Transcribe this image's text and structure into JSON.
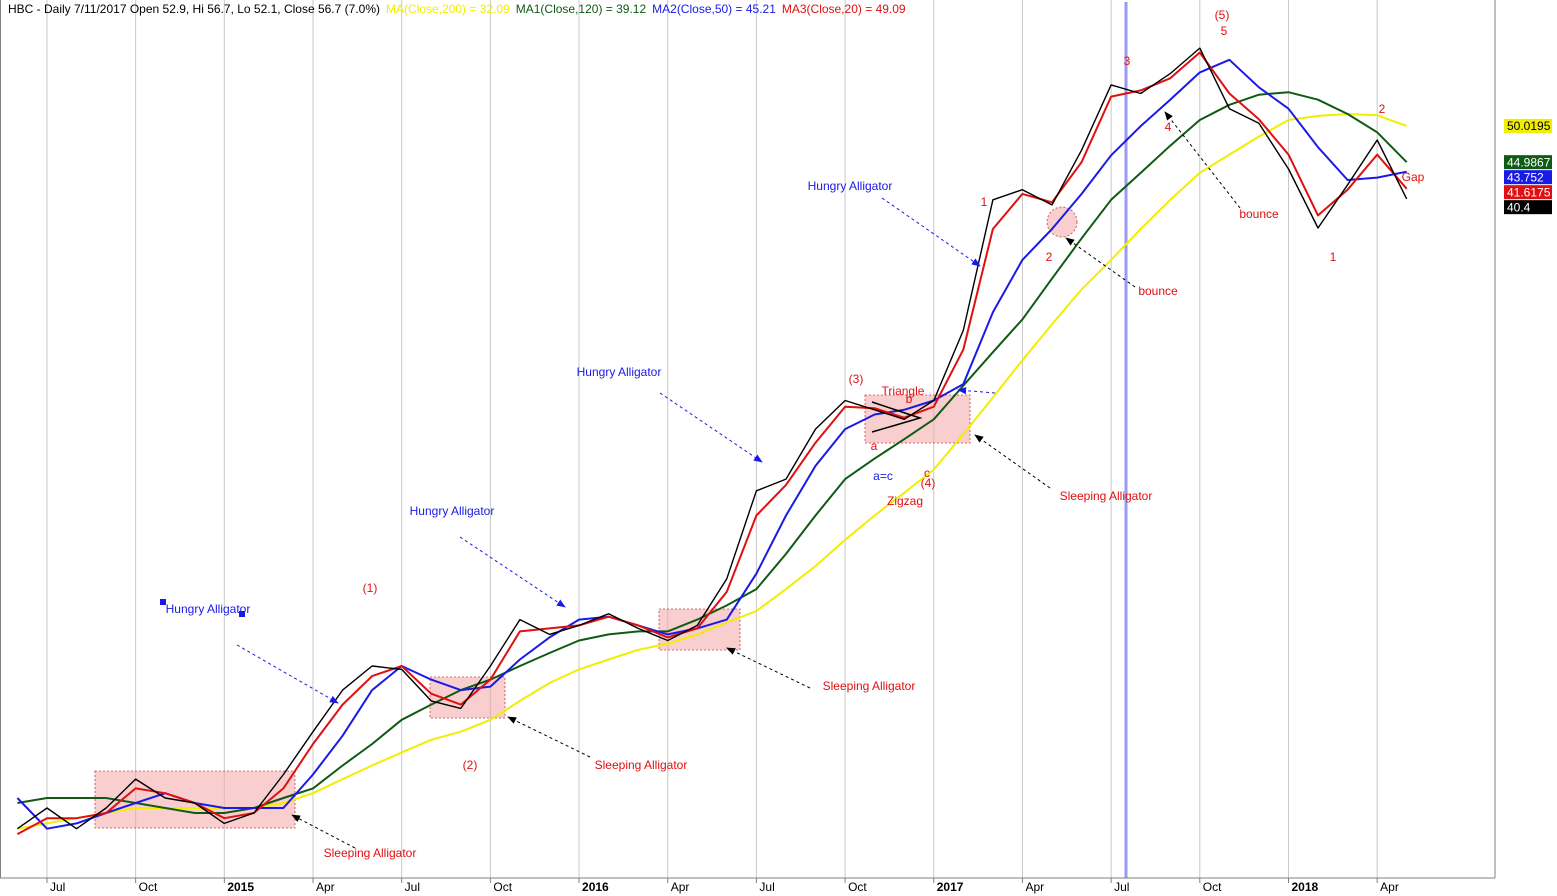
{
  "chart_data": {
    "type": "line",
    "title": "HBC - Daily 7/11/2017 Open 52.9, Hi 56.7, Lo 52.1, Close 56.7 (7.0%)",
    "log": true,
    "grid": true,
    "ylim": [
      5.54,
      72.3
    ],
    "categories": [
      null,
      "Jul",
      null,
      null,
      "Oct",
      null,
      null,
      "2015",
      null,
      null,
      "Apr",
      null,
      null,
      "Jul",
      null,
      null,
      "Oct",
      null,
      null,
      "2016",
      null,
      null,
      "Apr",
      null,
      null,
      "Jul",
      null,
      null,
      "Oct",
      null,
      null,
      "2017",
      null,
      null,
      "Apr",
      null,
      null,
      "Jul",
      null,
      null,
      "Oct",
      null,
      null,
      "2018",
      null,
      null,
      "Apr",
      null
    ],
    "series": [
      {
        "name": "MA(Close,200) = 32.09",
        "color": "#f2ee00",
        "values": [
          6.4,
          6.5,
          6.6,
          6.7,
          6.8,
          6.8,
          6.8,
          6.8,
          6.8,
          6.9,
          7.1,
          7.4,
          7.7,
          8.0,
          8.3,
          8.5,
          8.8,
          9.3,
          9.8,
          10.2,
          10.5,
          10.8,
          11.0,
          11.3,
          11.7,
          12.1,
          12.9,
          13.8,
          14.9,
          16.0,
          17.1,
          18.3,
          20.3,
          22.6,
          25.2,
          28.0,
          31.0,
          33.8,
          37.0,
          40.3,
          43.6,
          46.0,
          48.5,
          50.9,
          51.5,
          51.8,
          51.6,
          50.0195
        ]
      },
      {
        "name": "MA1(Close,120) = 39.12",
        "color": "#0f5a14",
        "values": [
          6.9,
          7.0,
          7.0,
          7.0,
          6.9,
          6.8,
          6.7,
          6.7,
          6.8,
          7.0,
          7.2,
          7.7,
          8.2,
          8.8,
          9.2,
          9.6,
          9.9,
          10.3,
          10.7,
          11.1,
          11.3,
          11.4,
          11.4,
          11.8,
          12.3,
          12.9,
          14.3,
          16.0,
          17.8,
          18.9,
          20.0,
          21.2,
          23.4,
          25.8,
          28.4,
          32.0,
          36.0,
          40.3,
          43.6,
          47.2,
          50.9,
          53.2,
          54.8,
          55.2,
          54.0,
          51.8,
          49.1,
          44.9867
        ]
      },
      {
        "name": "MA2(Close,50) = 45.21",
        "color": "#1a1ae6",
        "values": [
          7.0,
          6.4,
          6.5,
          6.7,
          6.9,
          7.1,
          6.9,
          6.8,
          6.8,
          6.8,
          7.5,
          8.4,
          9.6,
          10.3,
          9.9,
          9.6,
          9.7,
          10.5,
          11.2,
          11.8,
          11.9,
          11.6,
          11.3,
          11.5,
          11.8,
          13.5,
          16.0,
          18.5,
          20.6,
          21.5,
          21.8,
          22.4,
          23.5,
          29.0,
          33.8,
          37.0,
          41.0,
          45.9,
          50.0,
          54.0,
          58.5,
          60.7,
          56.0,
          52.6,
          47.0,
          42.7,
          43.0,
          43.752
        ]
      },
      {
        "name": "MA3(Close,20) = 49.09",
        "color": "#e01010",
        "values": [
          6.3,
          6.6,
          6.6,
          6.7,
          7.2,
          7.1,
          6.9,
          6.6,
          6.7,
          7.2,
          8.2,
          9.2,
          10.0,
          10.3,
          9.5,
          9.2,
          9.9,
          11.4,
          11.5,
          11.6,
          11.9,
          11.6,
          11.2,
          11.5,
          12.8,
          16.0,
          17.5,
          19.8,
          22.0,
          21.9,
          21.3,
          22.0,
          26.0,
          37.0,
          41.0,
          40.0,
          45.0,
          54.5,
          55.5,
          57.5,
          62.0,
          55.0,
          51.0,
          46.0,
          38.5,
          41.5,
          46.0,
          41.6175
        ]
      },
      {
        "color": "#000000",
        "values": [
          6.4,
          6.8,
          6.4,
          6.8,
          7.4,
          7.0,
          6.9,
          6.5,
          6.7,
          7.5,
          8.5,
          9.6,
          10.3,
          10.2,
          9.3,
          9.1,
          10.3,
          11.8,
          11.3,
          11.6,
          12.0,
          11.5,
          11.1,
          11.6,
          13.3,
          17.2,
          17.8,
          20.6,
          22.4,
          21.8,
          21.2,
          22.4,
          27.5,
          40.3,
          41.5,
          39.7,
          46.6,
          56.4,
          55.0,
          58.3,
          62.8,
          52.6,
          50.4,
          44.1,
          37.1,
          42.1,
          48.0,
          40.4
        ]
      }
    ],
    "annotations": [
      {
        "text": "Hungry Alligator",
        "color": "#1a1ae6"
      },
      {
        "text": "Hungry Alligator",
        "color": "#1a1ae6"
      },
      {
        "text": "Hungry Alligator",
        "color": "#1a1ae6"
      },
      {
        "text": "Hungry Alligator",
        "color": "#1a1ae6"
      },
      {
        "text": "Sleeping Alligator",
        "color": "#e01010"
      },
      {
        "text": "Sleeping Alligator",
        "color": "#e01010"
      },
      {
        "text": "Sleeping Alligator",
        "color": "#e01010"
      },
      {
        "text": "Sleeping Alligator",
        "color": "#e01010"
      },
      {
        "text": "(1)",
        "color": "#e01010"
      },
      {
        "text": "(2)",
        "color": "#e01010"
      },
      {
        "text": "(3)",
        "color": "#e01010"
      },
      {
        "text": "(4)",
        "color": "#e01010"
      },
      {
        "text": "(5)",
        "color": "#e01010"
      },
      {
        "text": "1",
        "color": "#e01010"
      },
      {
        "text": "2",
        "color": "#e01010"
      },
      {
        "text": "3",
        "color": "#e01010"
      },
      {
        "text": "4",
        "color": "#e01010"
      },
      {
        "text": "5",
        "color": "#e01010"
      },
      {
        "text": "Triangle",
        "color": "#e01010"
      },
      {
        "text": "a",
        "color": "#e01010"
      },
      {
        "text": "b",
        "color": "#e01010"
      },
      {
        "text": "c",
        "color": "#e01010"
      },
      {
        "text": "a=c",
        "color": "#1a1ae6"
      },
      {
        "text": "Zigzag",
        "color": "#e01010"
      },
      {
        "text": "bounce",
        "color": "#e01010"
      },
      {
        "text": "bounce",
        "color": "#e01010"
      },
      {
        "text": "1",
        "color": "#e01010"
      },
      {
        "text": "2",
        "color": "#e01010"
      },
      {
        "text": "Gap",
        "color": "#e01010"
      }
    ]
  }
}
